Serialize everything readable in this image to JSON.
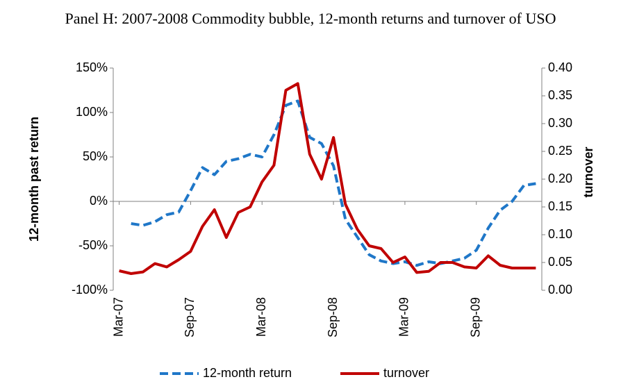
{
  "chart_data": {
    "type": "line",
    "title": "Panel H: 2007-2008 Commodity bubble, 12-month returns and turnover of USO",
    "y_label": "12-month past return",
    "y2_label": "turnover",
    "categories": [
      "Mar-07",
      null,
      null,
      null,
      null,
      null,
      "Sep-07",
      null,
      null,
      null,
      null,
      null,
      "Mar-08",
      null,
      null,
      null,
      null,
      null,
      "Sep-08",
      null,
      null,
      null,
      null,
      null,
      "Mar-09",
      null,
      null,
      null,
      null,
      null,
      "Sep-09",
      null,
      null,
      null,
      null,
      null
    ],
    "series": [
      {
        "name": "12-month return",
        "color": "#1f77c8",
        "dashed": true,
        "values": [
          null,
          -25,
          -27,
          -23,
          -15,
          -12,
          12,
          38,
          30,
          45,
          48,
          53,
          50,
          75,
          108,
          113,
          72,
          65,
          40,
          -20,
          -40,
          -60,
          -67,
          -70,
          -68,
          -72,
          -68,
          -70,
          -67,
          -64,
          -55,
          -30,
          -10,
          0,
          18,
          20
        ]
      },
      {
        "name": "turnover",
        "color": "#c00000",
        "axis": "y2",
        "dashed": false,
        "values": [
          0.035,
          0.03,
          0.033,
          0.048,
          0.042,
          0.055,
          0.07,
          0.115,
          0.145,
          0.095,
          0.14,
          0.15,
          0.195,
          0.225,
          0.36,
          0.372,
          0.245,
          0.2,
          0.275,
          0.155,
          0.11,
          0.08,
          0.075,
          0.05,
          0.06,
          0.032,
          0.034,
          0.05,
          0.05,
          0.042,
          0.04,
          0.062,
          0.045,
          0.04,
          0.04,
          0.04
        ]
      }
    ],
    "ylim": [
      -100,
      150
    ],
    "yticks": [
      {
        "value": -100,
        "label": "-100%"
      },
      {
        "value": -50,
        "label": "-50%"
      },
      {
        "value": 0,
        "label": "0%"
      },
      {
        "value": 50,
        "label": "50%"
      },
      {
        "value": 100,
        "label": "100%"
      },
      {
        "value": 150,
        "label": "150%"
      }
    ],
    "y2lim": [
      0,
      0.4
    ],
    "y2ticks": [
      {
        "value": 0,
        "label": "0.00"
      },
      {
        "value": 0.05,
        "label": "0.05"
      },
      {
        "value": 0.1,
        "label": "0.10"
      },
      {
        "value": 0.15,
        "label": "0.15"
      },
      {
        "value": 0.2,
        "label": "0.20"
      },
      {
        "value": 0.25,
        "label": "0.25"
      },
      {
        "value": 0.3,
        "label": "0.30"
      },
      {
        "value": 0.35,
        "label": "0.35"
      },
      {
        "value": 0.4,
        "label": "0.40"
      }
    ],
    "legend": "bottom"
  }
}
